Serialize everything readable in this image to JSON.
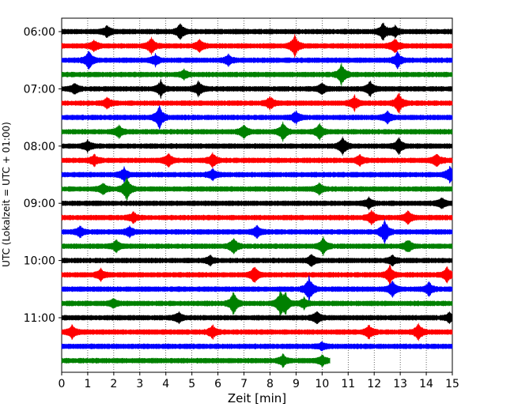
{
  "chart_data": {
    "type": "line",
    "xlabel": "Zeit  [min]",
    "ylabel": "UTC (Lokalzeit = UTC + 01:00)",
    "xlim": [
      0,
      15
    ],
    "x_ticks": [
      "0",
      "1",
      "2",
      "3",
      "4",
      "5",
      "6",
      "7",
      "8",
      "9",
      "10",
      "11",
      "12",
      "13",
      "14",
      "15"
    ],
    "y_tick_labels": [
      "06:00",
      "07:00",
      "08:00",
      "09:00",
      "10:00",
      "11:00"
    ],
    "trace_interval_min": 15,
    "start_time": "06:00",
    "grid": "vertical dotted",
    "colors": [
      "#000000",
      "#ff0000",
      "#0000ff",
      "#008000"
    ],
    "series": [
      {
        "start": "06:00",
        "color": "#000000",
        "end_min": 15,
        "events": [
          [
            1.75,
            7
          ],
          [
            4.55,
            10
          ],
          [
            12.35,
            11
          ],
          [
            12.8,
            6
          ]
        ]
      },
      {
        "start": "06:15",
        "color": "#ff0000",
        "end_min": 15,
        "events": [
          [
            1.25,
            6
          ],
          [
            3.45,
            10
          ],
          [
            5.3,
            7
          ],
          [
            8.95,
            13
          ],
          [
            12.8,
            9
          ]
        ]
      },
      {
        "start": "06:30",
        "color": "#0000ff",
        "end_min": 15,
        "events": [
          [
            1.05,
            11
          ],
          [
            3.6,
            6
          ],
          [
            6.4,
            6
          ],
          [
            12.9,
            10
          ]
        ]
      },
      {
        "start": "06:45",
        "color": "#008000",
        "end_min": 15,
        "events": [
          [
            4.7,
            5
          ],
          [
            10.75,
            13
          ]
        ]
      },
      {
        "start": "07:00",
        "color": "#000000",
        "end_min": 15,
        "events": [
          [
            0.5,
            6
          ],
          [
            3.8,
            10
          ],
          [
            5.25,
            9
          ],
          [
            10.0,
            7
          ],
          [
            11.85,
            10
          ]
        ]
      },
      {
        "start": "07:15",
        "color": "#ff0000",
        "end_min": 15,
        "events": [
          [
            1.75,
            6
          ],
          [
            8.0,
            8
          ],
          [
            11.25,
            8
          ],
          [
            12.95,
            12
          ]
        ]
      },
      {
        "start": "07:30",
        "color": "#0000ff",
        "end_min": 15,
        "events": [
          [
            3.75,
            15
          ],
          [
            9.0,
            7
          ],
          [
            12.5,
            7
          ]
        ]
      },
      {
        "start": "07:45",
        "color": "#008000",
        "end_min": 15,
        "events": [
          [
            2.2,
            7
          ],
          [
            7.0,
            8
          ],
          [
            8.5,
            11
          ],
          [
            9.9,
            10
          ]
        ]
      },
      {
        "start": "08:00",
        "color": "#000000",
        "end_min": 15,
        "events": [
          [
            1.0,
            6
          ],
          [
            10.8,
            11
          ],
          [
            12.95,
            10
          ]
        ]
      },
      {
        "start": "08:15",
        "color": "#ff0000",
        "end_min": 15,
        "events": [
          [
            1.25,
            6
          ],
          [
            4.1,
            8
          ],
          [
            5.8,
            8
          ],
          [
            11.45,
            6
          ],
          [
            14.4,
            8
          ]
        ]
      },
      {
        "start": "08:30",
        "color": "#0000ff",
        "end_min": 15,
        "events": [
          [
            2.4,
            8
          ],
          [
            5.8,
            6
          ],
          [
            14.9,
            10
          ]
        ]
      },
      {
        "start": "08:45",
        "color": "#008000",
        "end_min": 15,
        "events": [
          [
            1.6,
            6
          ],
          [
            2.5,
            15
          ],
          [
            9.9,
            7
          ]
        ]
      },
      {
        "start": "09:00",
        "color": "#000000",
        "end_min": 15,
        "events": [
          [
            11.8,
            6
          ],
          [
            14.6,
            6
          ]
        ]
      },
      {
        "start": "09:15",
        "color": "#ff0000",
        "end_min": 15,
        "events": [
          [
            2.75,
            6
          ],
          [
            11.9,
            9
          ],
          [
            13.3,
            8
          ]
        ]
      },
      {
        "start": "09:30",
        "color": "#0000ff",
        "end_min": 15,
        "events": [
          [
            0.7,
            6
          ],
          [
            2.6,
            6
          ],
          [
            7.5,
            7
          ],
          [
            12.4,
            15
          ]
        ]
      },
      {
        "start": "09:45",
        "color": "#008000",
        "end_min": 15,
        "events": [
          [
            2.1,
            7
          ],
          [
            6.6,
            10
          ],
          [
            10.05,
            10
          ],
          [
            13.3,
            8
          ]
        ]
      },
      {
        "start": "10:00",
        "color": "#000000",
        "end_min": 15,
        "events": [
          [
            5.7,
            5
          ],
          [
            9.6,
            7
          ],
          [
            12.7,
            6
          ]
        ]
      },
      {
        "start": "10:15",
        "color": "#ff0000",
        "end_min": 15,
        "events": [
          [
            1.5,
            7
          ],
          [
            7.4,
            10
          ],
          [
            12.6,
            11
          ],
          [
            14.8,
            9
          ]
        ]
      },
      {
        "start": "10:30",
        "color": "#0000ff",
        "end_min": 15,
        "events": [
          [
            9.5,
            16
          ],
          [
            12.7,
            10
          ],
          [
            14.1,
            8
          ]
        ]
      },
      {
        "start": "10:45",
        "color": "#008000",
        "end_min": 15,
        "events": [
          [
            2.0,
            5
          ],
          [
            6.6,
            14
          ],
          [
            8.4,
            15
          ],
          [
            8.6,
            11
          ],
          [
            9.3,
            6
          ]
        ]
      },
      {
        "start": "11:00",
        "color": "#000000",
        "end_min": 15,
        "events": [
          [
            4.5,
            6
          ],
          [
            9.8,
            8
          ],
          [
            14.9,
            6
          ]
        ]
      },
      {
        "start": "11:15",
        "color": "#ff0000",
        "end_min": 15,
        "events": [
          [
            0.4,
            8
          ],
          [
            5.8,
            9
          ],
          [
            11.8,
            8
          ],
          [
            13.7,
            10
          ]
        ]
      },
      {
        "start": "11:30",
        "color": "#0000ff",
        "end_min": 15,
        "events": [
          [
            10.0,
            4
          ]
        ]
      },
      {
        "start": "11:45",
        "color": "#008000",
        "end_min": 10.3,
        "events": [
          [
            8.5,
            7
          ],
          [
            10.0,
            6
          ]
        ]
      }
    ]
  }
}
